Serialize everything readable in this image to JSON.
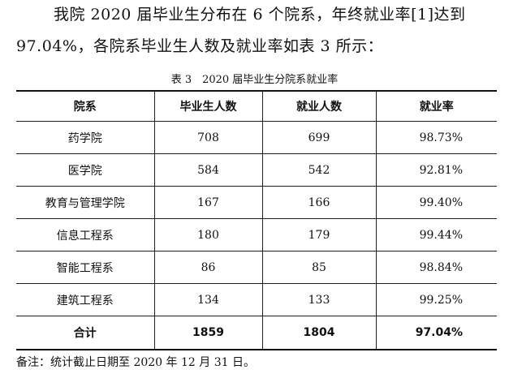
{
  "paragraph": {
    "line1": "我院 2020 届毕业生分布在 6 个院系，年终就业率[1]达到",
    "line2": "97.04%，各院系毕业生人数及就业率如表 3 所示："
  },
  "table": {
    "caption": "表 3　2020 届毕业生分院系就业率",
    "headers": [
      "院系",
      "毕业生人数",
      "就业人数",
      "就业率"
    ],
    "rows": [
      {
        "dept": "药学院",
        "graduates": "708",
        "employed": "699",
        "rate": "98.73%"
      },
      {
        "dept": "医学院",
        "graduates": "584",
        "employed": "542",
        "rate": "92.81%"
      },
      {
        "dept": "教育与管理学院",
        "graduates": "167",
        "employed": "166",
        "rate": "99.40%"
      },
      {
        "dept": "信息工程系",
        "graduates": "180",
        "employed": "179",
        "rate": "99.44%"
      },
      {
        "dept": "智能工程系",
        "graduates": "86",
        "employed": "85",
        "rate": "98.84%"
      },
      {
        "dept": "建筑工程系",
        "graduates": "134",
        "employed": "133",
        "rate": "99.25%"
      }
    ],
    "total": {
      "dept": "合计",
      "graduates": "1859",
      "employed": "1804",
      "rate": "97.04%"
    }
  },
  "note": "备注：统计截止日期至 2020 年 12 月 31 日。"
}
